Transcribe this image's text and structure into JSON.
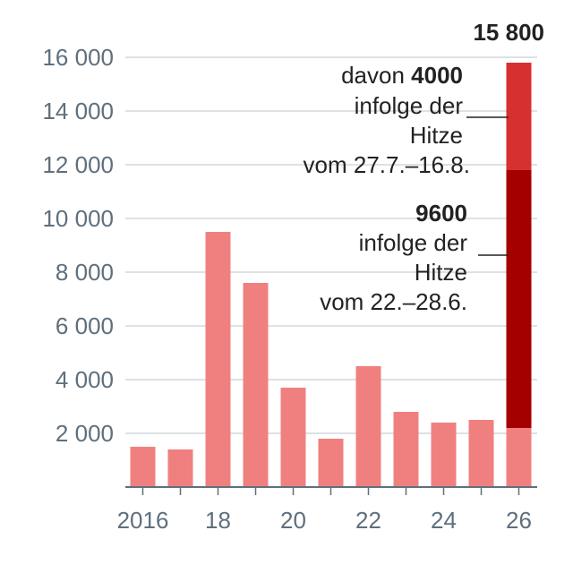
{
  "chart_data": {
    "type": "bar",
    "categories": [
      "2016",
      "2017",
      "2018",
      "2019",
      "2020",
      "2021",
      "2022",
      "2023",
      "2024",
      "2025",
      "2026"
    ],
    "x_tick_labels": [
      "2016",
      "",
      "18",
      "",
      "20",
      "",
      "22",
      "",
      "24",
      "",
      "26"
    ],
    "values": [
      1500,
      1400,
      9500,
      7600,
      3700,
      1800,
      4500,
      2800,
      2400,
      2500,
      15800
    ],
    "stacked_last": {
      "segments": [
        {
          "value": 2200,
          "color": "#f08080"
        },
        {
          "value": 9600,
          "color": "#a50000"
        },
        {
          "value": 4000,
          "color": "#d73030"
        }
      ],
      "total_label": "15 800"
    },
    "y_ticks": [
      2000,
      4000,
      6000,
      8000,
      10000,
      12000,
      14000,
      16000
    ],
    "y_tick_labels": [
      "2 000",
      "4 000",
      "6 000",
      "8 000",
      "10 000",
      "12 000",
      "14 000",
      "16 000"
    ],
    "ylim": [
      0,
      16800
    ],
    "grid": true,
    "annotations": {
      "upper": {
        "prefix": "davon ",
        "value": "4000",
        "line2": "infolge der",
        "line3": "Hitze",
        "line4": "vom 27.7.–16.8."
      },
      "lower": {
        "value": "9600",
        "line2": "infolge der",
        "line3": "Hitze",
        "line4": "vom 22.–28.6."
      }
    },
    "colors": {
      "bar": "#f08080",
      "grid": "#c7d0d6",
      "axis": "#5f6f7c"
    }
  }
}
